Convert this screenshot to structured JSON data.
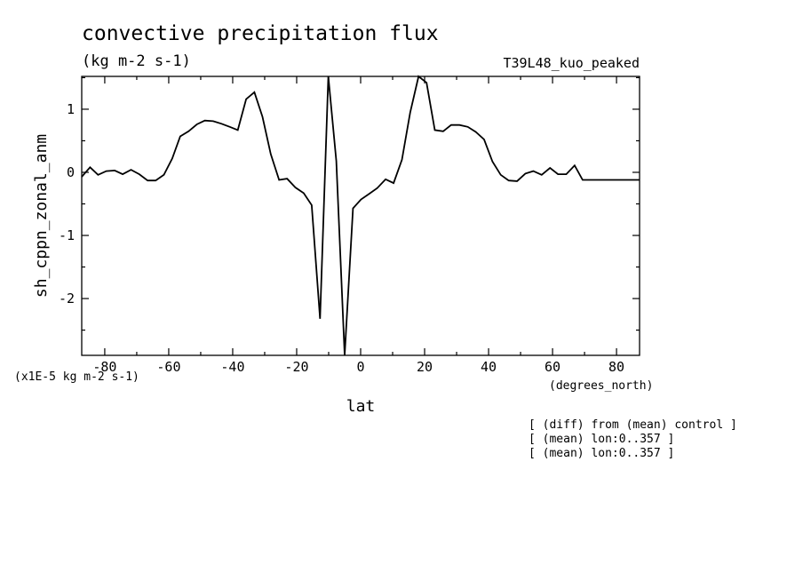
{
  "chart_data": {
    "type": "line",
    "title": "convective precipitation flux",
    "units": "(kg m-2 s-1)",
    "run_name": "T39L48_kuo_peaked",
    "ylabel": "sh_cppn_zonal_anm",
    "xlabel": "lat",
    "x_units": "(degrees_north)",
    "y_scale_note": "(x1E-5 kg m-2 s-1)",
    "notes": [
      "[ (diff) from (mean) control ]",
      "[ (mean) lon:0..357 ]",
      "[ (mean) lon:0..357 ]"
    ],
    "xlim": [
      -87.2,
      87.2
    ],
    "ylim": [
      -2.9,
      1.52
    ],
    "xticks": [
      -80,
      -60,
      -40,
      -20,
      0,
      20,
      40,
      60,
      80
    ],
    "xtick_labels": [
      "-80",
      "-60",
      "-40",
      "-20",
      "0",
      "20",
      "40",
      "60",
      "80"
    ],
    "yticks": [
      1,
      0,
      -1,
      -2
    ],
    "ytick_labels": [
      "1",
      "0",
      "-1",
      "-2"
    ],
    "grid": false,
    "series": [
      {
        "x": [
          -87.2,
          -84.6,
          -82.1,
          -79.5,
          -76.9,
          -74.4,
          -71.8,
          -69.2,
          -66.6,
          -64.1,
          -61.5,
          -58.9,
          -56.4,
          -53.8,
          -51.2,
          -48.7,
          -46.1,
          -43.5,
          -40.9,
          -38.4,
          -35.8,
          -33.2,
          -30.7,
          -28.1,
          -25.5,
          -23.0,
          -20.4,
          -17.8,
          -15.3,
          -12.7,
          -10.1,
          -7.6,
          -5.0,
          -2.4,
          0.1,
          2.7,
          5.2,
          7.8,
          10.3,
          12.9,
          15.5,
          18.1,
          20.6,
          23.2,
          25.8,
          28.3,
          30.9,
          33.5,
          36.0,
          38.6,
          41.2,
          43.8,
          46.3,
          48.9,
          51.5,
          54.0,
          56.6,
          59.2,
          61.7,
          64.3,
          66.9,
          69.4,
          72.0,
          74.6,
          77.2,
          79.7,
          82.3,
          84.9,
          87.2
        ],
        "y": [
          -0.07,
          0.08,
          -0.04,
          0.02,
          0.03,
          -0.03,
          0.04,
          -0.03,
          -0.13,
          -0.13,
          -0.04,
          0.22,
          0.57,
          0.65,
          0.76,
          0.82,
          0.81,
          0.77,
          0.72,
          0.67,
          1.16,
          1.27,
          0.88,
          0.29,
          -0.12,
          -0.1,
          -0.24,
          -0.33,
          -0.52,
          -2.32,
          1.52,
          0.18,
          -2.92,
          -0.57,
          -0.43,
          -0.34,
          -0.25,
          -0.11,
          -0.17,
          0.2,
          0.95,
          1.52,
          1.42,
          0.67,
          0.65,
          0.75,
          0.75,
          0.72,
          0.64,
          0.52,
          0.17,
          -0.04,
          -0.13,
          -0.14,
          -0.02,
          0.02,
          -0.04,
          0.07,
          -0.03,
          -0.03,
          0.11,
          -0.12,
          -0.12,
          -0.12,
          -0.12,
          -0.12,
          -0.12,
          -0.12,
          -0.12
        ]
      }
    ]
  }
}
